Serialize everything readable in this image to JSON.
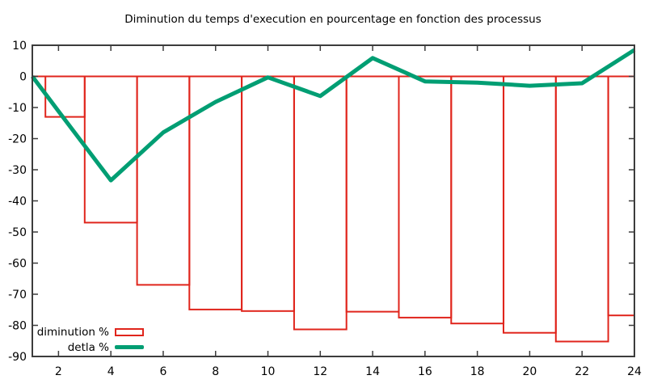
{
  "title": "Diminution du temps d'execution en pourcentage en fonction des processus",
  "chart_data": {
    "type": "bar",
    "subtype": "bar-outline with line overlay (gnuplot style)",
    "title": "Diminution du temps d'execution en pourcentage en fonction des processus",
    "x": [
      1,
      2,
      4,
      6,
      8,
      10,
      12,
      14,
      16,
      18,
      20,
      22,
      24
    ],
    "series": [
      {
        "name": "diminution %",
        "type": "bar",
        "color": "#e0251c",
        "values": [
          0,
          -13,
          -47,
          -67,
          -74.9,
          -75.4,
          -81.3,
          -75.6,
          -77.5,
          -79.4,
          -82.4,
          -85.2,
          -76.8
        ]
      },
      {
        "name": "detla %",
        "type": "line",
        "color": "#009e73",
        "values": [
          0,
          -11.2,
          -33.4,
          -18,
          -8.2,
          -0.3,
          -6.3,
          5.9,
          -1.6,
          -2,
          -3,
          -2.2,
          8.5
        ]
      }
    ],
    "xlabel": "",
    "ylabel": "",
    "xlim": [
      1,
      24
    ],
    "ylim": [
      -90,
      10
    ],
    "xticks": [
      2,
      4,
      6,
      8,
      10,
      12,
      14,
      16,
      18,
      20,
      22,
      24
    ],
    "yticks": [
      10,
      0,
      -10,
      -20,
      -30,
      -40,
      -50,
      -60,
      -70,
      -80,
      -90
    ],
    "grid": false,
    "legend_position": "bottom-left",
    "bar_width_units": 2,
    "axis_color": "#3c3c3c",
    "text_color": "#000000",
    "background": "#ffffff"
  }
}
